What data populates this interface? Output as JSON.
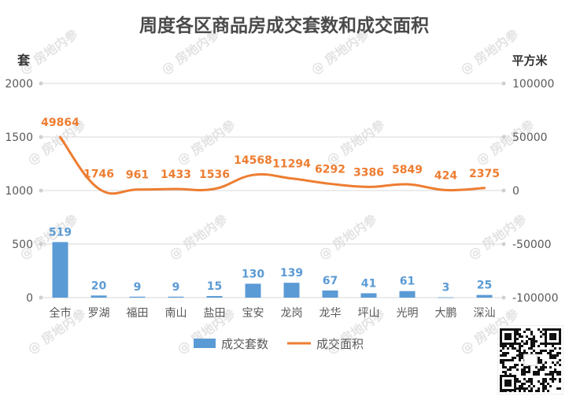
{
  "watermark": "@ 房地内参",
  "colors": {
    "title": "#4a4a4a",
    "bar": "#5b9bd5",
    "line": "#ed7d31",
    "grid": "#d9d9d9",
    "axis_text": "#595959"
  },
  "chart_data": {
    "type": "bar+line",
    "title": "周度各区商品房成交套数和成交面积",
    "categories": [
      "全市",
      "罗湖",
      "福田",
      "南山",
      "盐田",
      "宝安",
      "龙岗",
      "龙华",
      "坪山",
      "光明",
      "大鹏",
      "深汕"
    ],
    "series": [
      {
        "name": "成交套数",
        "type": "bar",
        "axis": "left",
        "values": [
          519,
          20,
          9,
          9,
          15,
          130,
          139,
          67,
          41,
          61,
          3,
          25
        ]
      },
      {
        "name": "成交面积",
        "type": "line",
        "axis": "right",
        "values": [
          49864,
          1746,
          961,
          1433,
          1536,
          14568,
          11294,
          6292,
          3386,
          5849,
          424,
          2375
        ]
      }
    ],
    "y_left": {
      "label": "套",
      "ylim": [
        0,
        2000
      ],
      "ticks": [
        "0",
        "500",
        "1000",
        "1500",
        "2000"
      ]
    },
    "y_right": {
      "label": "平方米",
      "ylim": [
        -100000,
        100000
      ],
      "ticks": [
        "-100000",
        "-50000",
        "0",
        "50000",
        "100000"
      ]
    },
    "grid": true,
    "legend": "bottom"
  }
}
